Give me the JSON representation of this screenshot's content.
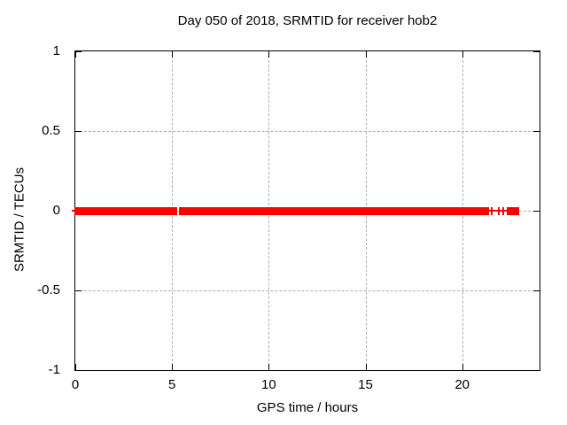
{
  "title": "Day 050 of 2018, SRMTID for receiver hob2",
  "axis": {
    "xlabel": "GPS time / hours",
    "ylabel": "SRMTID / TECUs"
  },
  "chart_data": {
    "type": "scatter",
    "title": "Day 050 of 2018, SRMTID for receiver hob2",
    "xlabel": "GPS time / hours",
    "ylabel": "SRMTID / TECUs",
    "xlim": [
      0,
      24
    ],
    "ylim": [
      -1,
      1
    ],
    "xticks": [
      0,
      5,
      10,
      15,
      20
    ],
    "yticks": [
      1,
      0.5,
      0,
      -0.5,
      -1
    ],
    "grid": true,
    "legend": "none",
    "marker": "plus",
    "series_color": "#ff0000",
    "grid_color": "#ababab",
    "series": [
      {
        "name": "SRMTID",
        "y_value": 0,
        "dense_segments_hours": [
          [
            0,
            5.25
          ],
          [
            5.36,
            21.38
          ],
          [
            22.29,
            22.93
          ]
        ],
        "isolated_points_hours": [
          0,
          21.52,
          21.91,
          22.11
        ]
      }
    ]
  }
}
